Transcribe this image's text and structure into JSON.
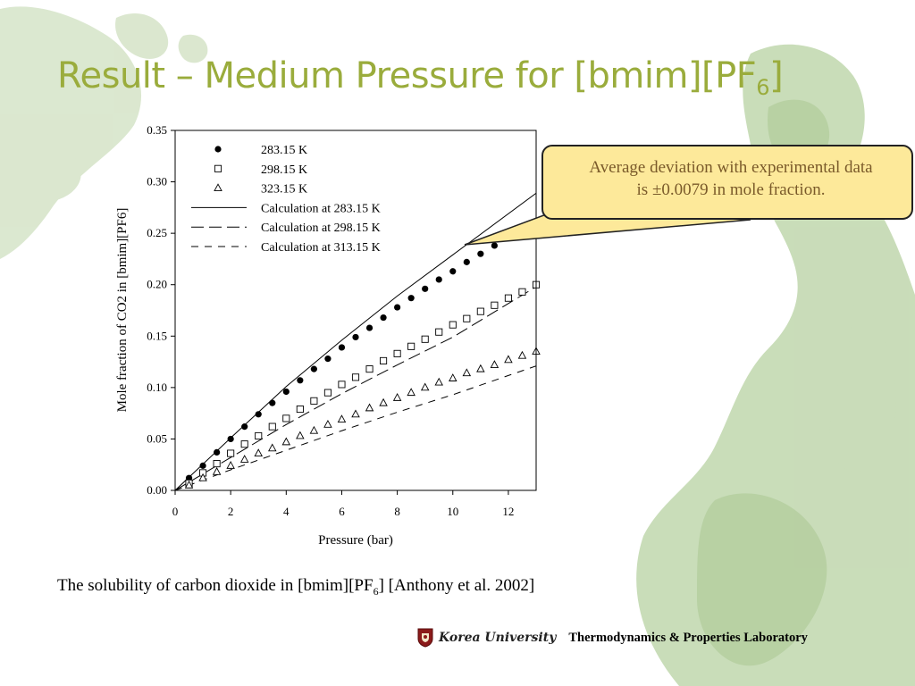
{
  "slide": {
    "title_main": "Result – Medium Pressure for [bmim][PF",
    "title_sub": "6",
    "title_end": "]"
  },
  "callout": {
    "line1": "Average deviation with experimental data",
    "line2": "is ±0.0079 in mole fraction."
  },
  "caption": {
    "text_before": "The solubility of carbon dioxide in [bmim][PF",
    "sub": "6",
    "text_after": "] [Anthony et al. 2002]"
  },
  "footer": {
    "university": "Korea University",
    "lab": "Thermodynamics & Properties Laboratory"
  },
  "colors": {
    "title": "#9aac3c",
    "callout_fill": "#fde99a",
    "callout_text": "#7a5a2a",
    "background_art": "#c9dcb8"
  },
  "chart_data": {
    "type": "scatter",
    "xlabel": "Pressure (bar)",
    "ylabel": "Mole fraction of CO2 in [bmim][PF6]",
    "xlim": [
      0,
      13
    ],
    "ylim": [
      0,
      0.35
    ],
    "x_ticks": [
      "0",
      "2",
      "4",
      "6",
      "8",
      "10",
      "12"
    ],
    "y_ticks": [
      "0.00",
      "0.05",
      "0.10",
      "0.15",
      "0.20",
      "0.25",
      "0.30",
      "0.35"
    ],
    "legend_position": "top-left",
    "grid": false,
    "series": [
      {
        "name": "283.15 K",
        "marker": "filled-circle",
        "x": [
          0.5,
          1.0,
          1.5,
          2.0,
          2.5,
          3.0,
          3.5,
          4.0,
          4.5,
          5.0,
          5.5,
          6.0,
          6.5,
          7.0,
          7.5,
          8.0,
          8.5,
          9.0,
          9.5,
          10.0,
          10.5,
          11.0,
          11.5,
          12.0,
          12.5,
          13.0
        ],
        "y": [
          0.012,
          0.024,
          0.037,
          0.05,
          0.062,
          0.074,
          0.085,
          0.096,
          0.107,
          0.118,
          0.128,
          0.139,
          0.149,
          0.158,
          0.168,
          0.178,
          0.187,
          0.196,
          0.205,
          0.213,
          0.222,
          0.23,
          0.238,
          0.246,
          0.254,
          0.262
        ]
      },
      {
        "name": "298.15 K",
        "marker": "open-square",
        "x": [
          0.5,
          1.0,
          1.5,
          2.0,
          2.5,
          3.0,
          3.5,
          4.0,
          4.5,
          5.0,
          5.5,
          6.0,
          6.5,
          7.0,
          7.5,
          8.0,
          8.5,
          9.0,
          9.5,
          10.0,
          10.5,
          11.0,
          11.5,
          12.0,
          12.5,
          13.0
        ],
        "y": [
          0.007,
          0.017,
          0.026,
          0.036,
          0.045,
          0.053,
          0.062,
          0.07,
          0.079,
          0.087,
          0.095,
          0.103,
          0.11,
          0.118,
          0.126,
          0.133,
          0.14,
          0.147,
          0.154,
          0.161,
          0.167,
          0.174,
          0.18,
          0.187,
          0.193,
          0.2
        ]
      },
      {
        "name": "323.15 K",
        "marker": "open-triangle",
        "x": [
          0.5,
          1.0,
          1.5,
          2.0,
          2.5,
          3.0,
          3.5,
          4.0,
          4.5,
          5.0,
          5.5,
          6.0,
          6.5,
          7.0,
          7.5,
          8.0,
          8.5,
          9.0,
          9.5,
          10.0,
          10.5,
          11.0,
          11.5,
          12.0,
          12.5,
          13.0
        ],
        "y": [
          0.005,
          0.012,
          0.018,
          0.024,
          0.03,
          0.036,
          0.041,
          0.047,
          0.053,
          0.058,
          0.064,
          0.069,
          0.074,
          0.08,
          0.085,
          0.09,
          0.095,
          0.1,
          0.105,
          0.109,
          0.114,
          0.118,
          0.122,
          0.127,
          0.131,
          0.135
        ]
      },
      {
        "name": "Calculation at 283.15 K",
        "line": "solid",
        "x": [
          0,
          2,
          4,
          6,
          8,
          10,
          13
        ],
        "y": [
          0.0,
          0.051,
          0.101,
          0.146,
          0.189,
          0.229,
          0.289
        ]
      },
      {
        "name": "Calculation at 298.15 K",
        "line": "long-dash",
        "x": [
          0,
          2,
          4,
          6,
          8,
          10,
          13
        ],
        "y": [
          0.0,
          0.032,
          0.064,
          0.094,
          0.122,
          0.149,
          0.198
        ]
      },
      {
        "name": "Calculation at 313.15 K",
        "line": "dash",
        "x": [
          0,
          2,
          4,
          6,
          8,
          10,
          13
        ],
        "y": [
          0.0,
          0.02,
          0.039,
          0.058,
          0.076,
          0.093,
          0.121
        ]
      }
    ]
  }
}
